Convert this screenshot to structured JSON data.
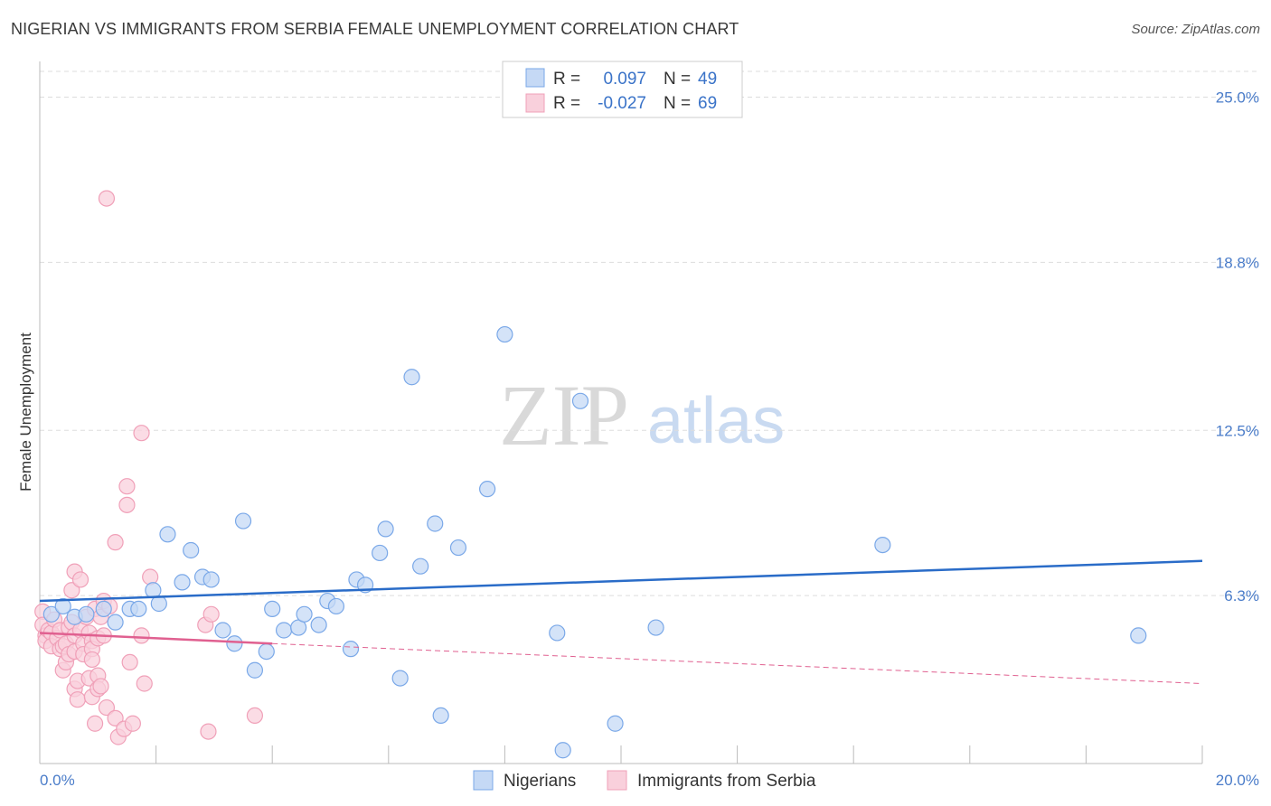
{
  "chart_data": {
    "type": "scatter",
    "title": "NIGERIAN VS IMMIGRANTS FROM SERBIA FEMALE UNEMPLOYMENT CORRELATION CHART",
    "source": "Source: ZipAtlas.com",
    "xlabel": "",
    "ylabel": "Female Unemployment",
    "xlim": [
      0,
      20
    ],
    "ylim": [
      0,
      26
    ],
    "x_tick_labels": {
      "left": "0.0%",
      "right": "20.0%"
    },
    "y_ticks": [
      {
        "value": 25.0,
        "label": "25.0%"
      },
      {
        "value": 18.8,
        "label": "18.8%"
      },
      {
        "value": 12.5,
        "label": "12.5%"
      },
      {
        "value": 6.3,
        "label": "6.3%"
      }
    ],
    "watermark": {
      "zip": "ZIP",
      "atlas": "atlas"
    },
    "legend": {
      "r_label": "R =",
      "n_label": "N =",
      "entries": [
        {
          "name": "Nigerians",
          "r": "0.097",
          "n": "49"
        },
        {
          "name": "Immigrants from Serbia",
          "r": "-0.027",
          "n": "69"
        }
      ]
    },
    "series": [
      {
        "name": "Nigerians",
        "color": "#7aa8e8",
        "fill": "#c5d9f5",
        "trend": {
          "x": [
            0,
            20
          ],
          "y": [
            6.1,
            7.6
          ],
          "color": "#2a6cc8"
        },
        "points": [
          [
            0.2,
            5.6
          ],
          [
            0.4,
            5.9
          ],
          [
            0.6,
            5.5
          ],
          [
            0.8,
            5.6
          ],
          [
            1.1,
            5.8
          ],
          [
            1.3,
            5.3
          ],
          [
            1.55,
            5.8
          ],
          [
            1.7,
            5.8
          ],
          [
            1.95,
            6.5
          ],
          [
            2.05,
            6.0
          ],
          [
            2.2,
            8.6
          ],
          [
            2.45,
            6.8
          ],
          [
            2.6,
            8.0
          ],
          [
            2.8,
            7.0
          ],
          [
            2.95,
            6.9
          ],
          [
            3.15,
            5.0
          ],
          [
            3.35,
            4.5
          ],
          [
            3.5,
            9.1
          ],
          [
            3.7,
            3.5
          ],
          [
            3.9,
            4.2
          ],
          [
            4.0,
            5.8
          ],
          [
            4.2,
            5.0
          ],
          [
            4.45,
            5.1
          ],
          [
            4.55,
            5.6
          ],
          [
            4.8,
            5.2
          ],
          [
            4.95,
            6.1
          ],
          [
            5.1,
            5.9
          ],
          [
            5.35,
            4.3
          ],
          [
            5.45,
            6.9
          ],
          [
            5.6,
            6.7
          ],
          [
            5.85,
            7.9
          ],
          [
            5.95,
            8.8
          ],
          [
            6.2,
            3.2
          ],
          [
            6.4,
            14.5
          ],
          [
            6.55,
            7.4
          ],
          [
            6.8,
            9.0
          ],
          [
            6.9,
            1.8
          ],
          [
            7.2,
            8.1
          ],
          [
            7.7,
            10.3
          ],
          [
            8.0,
            16.1
          ],
          [
            8.9,
            4.9
          ],
          [
            9.0,
            0.5
          ],
          [
            9.3,
            13.6
          ],
          [
            9.9,
            1.5
          ],
          [
            10.6,
            5.1
          ],
          [
            14.5,
            8.2
          ],
          [
            18.9,
            4.8
          ]
        ]
      },
      {
        "name": "Immigrants from Serbia",
        "color": "#f0a0b8",
        "fill": "#f9d0dc",
        "trend": {
          "x": [
            0,
            4
          ],
          "y": [
            4.9,
            4.5
          ],
          "color": "#e06090"
        },
        "trend_dashed": {
          "x": [
            4,
            20
          ],
          "y": [
            4.5,
            3.0
          ],
          "color": "#e06090"
        },
        "points": [
          [
            0.05,
            5.7
          ],
          [
            0.05,
            5.2
          ],
          [
            0.1,
            4.8
          ],
          [
            0.1,
            4.6
          ],
          [
            0.15,
            5.0
          ],
          [
            0.2,
            4.9
          ],
          [
            0.2,
            4.4
          ],
          [
            0.25,
            5.4
          ],
          [
            0.3,
            4.7
          ],
          [
            0.35,
            4.3
          ],
          [
            0.35,
            5.0
          ],
          [
            0.4,
            4.4
          ],
          [
            0.4,
            3.5
          ],
          [
            0.45,
            4.5
          ],
          [
            0.45,
            3.8
          ],
          [
            0.5,
            5.1
          ],
          [
            0.5,
            4.1
          ],
          [
            0.55,
            5.3
          ],
          [
            0.55,
            6.5
          ],
          [
            0.6,
            4.8
          ],
          [
            0.6,
            4.2
          ],
          [
            0.6,
            2.8
          ],
          [
            0.6,
            7.2
          ],
          [
            0.65,
            3.1
          ],
          [
            0.65,
            2.4
          ],
          [
            0.7,
            5.0
          ],
          [
            0.7,
            6.9
          ],
          [
            0.75,
            4.5
          ],
          [
            0.75,
            4.1
          ],
          [
            0.8,
            5.5
          ],
          [
            0.85,
            4.9
          ],
          [
            0.85,
            3.2
          ],
          [
            0.9,
            4.6
          ],
          [
            0.9,
            4.3
          ],
          [
            0.9,
            3.9
          ],
          [
            0.9,
            2.5
          ],
          [
            0.95,
            5.8
          ],
          [
            0.95,
            1.5
          ],
          [
            1.0,
            4.7
          ],
          [
            1.0,
            3.3
          ],
          [
            1.0,
            2.8
          ],
          [
            1.05,
            5.5
          ],
          [
            1.05,
            2.9
          ],
          [
            1.1,
            6.1
          ],
          [
            1.1,
            4.8
          ],
          [
            1.15,
            2.1
          ],
          [
            1.2,
            5.9
          ],
          [
            1.3,
            1.7
          ],
          [
            1.3,
            8.3
          ],
          [
            1.35,
            1.0
          ],
          [
            1.45,
            1.3
          ],
          [
            1.5,
            9.7
          ],
          [
            1.5,
            10.4
          ],
          [
            1.55,
            3.8
          ],
          [
            1.6,
            1.5
          ],
          [
            1.75,
            4.8
          ],
          [
            1.75,
            12.4
          ],
          [
            1.8,
            3.0
          ],
          [
            1.9,
            7.0
          ],
          [
            1.15,
            21.2
          ],
          [
            2.85,
            5.2
          ],
          [
            2.9,
            1.2
          ],
          [
            2.95,
            5.6
          ],
          [
            3.7,
            1.8
          ]
        ]
      }
    ]
  }
}
